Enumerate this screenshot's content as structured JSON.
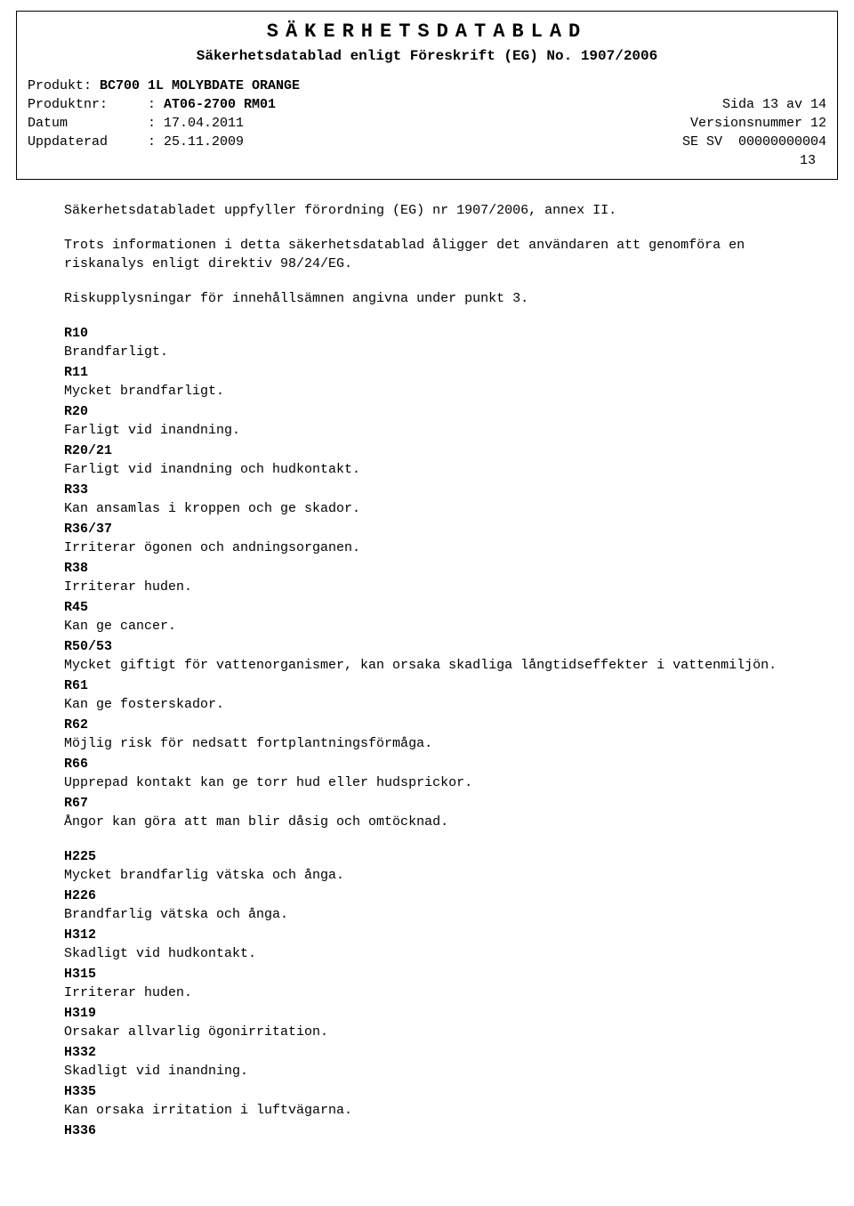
{
  "header": {
    "title": "SÄKERHETSDATABLAD",
    "subtitle": "Säkerhetsdatablad enligt Föreskrift (EG) No. 1907/2006",
    "product_label": "Produkt: ",
    "product_value": "BC700 1L MOLYBDATE ORANGE",
    "productnr_label": "Produktnr:     : ",
    "productnr_value": "AT06-2700 RM01",
    "page_text": "Sida 13 av 14",
    "date_label": "Datum          : ",
    "date_value": "17.04.2011",
    "version_text": "Versionsnummer 12",
    "updated_label": "Uppdaterad     : ",
    "updated_value": "25.11.2009",
    "locale_text": "SE SV  00000000004",
    "inner_pagenum": "13"
  },
  "intro": {
    "p1": "Säkerhetsdatabladet uppfyller förordning (EG) nr 1907/2006, annex II.",
    "p2": "Trots informationen i detta säkerhetsdatablad åligger det användaren att genomföra en riskanalys enligt direktiv 98/24/EG.",
    "p3": "Riskupplysningar för innehållsämnen angivna under punkt 3."
  },
  "r_phrases": [
    {
      "code": "R10",
      "text": "Brandfarligt."
    },
    {
      "code": "R11",
      "text": "Mycket brandfarligt."
    },
    {
      "code": "R20",
      "text": "Farligt vid inandning."
    },
    {
      "code": "R20/21",
      "text": "Farligt vid inandning och hudkontakt."
    },
    {
      "code": "R33",
      "text": "Kan ansamlas i kroppen och ge skador."
    },
    {
      "code": "R36/37",
      "text": "Irriterar ögonen och andningsorganen."
    },
    {
      "code": "R38",
      "text": "Irriterar huden."
    },
    {
      "code": "R45",
      "text": "Kan ge cancer."
    },
    {
      "code": "R50/53",
      "text": "Mycket giftigt för vattenorganismer, kan orsaka skadliga långtidseffekter i vattenmiljön."
    },
    {
      "code": "R61",
      "text": "Kan ge fosterskador."
    },
    {
      "code": "R62",
      "text": "Möjlig risk för nedsatt fortplantningsförmåga."
    },
    {
      "code": "R66",
      "text": "Upprepad kontakt kan ge torr hud eller hudsprickor."
    },
    {
      "code": "R67",
      "text": "Ångor kan göra att man blir dåsig och omtöcknad."
    }
  ],
  "h_phrases": [
    {
      "code": "H225",
      "text": "Mycket brandfarlig vätska och ånga."
    },
    {
      "code": "H226",
      "text": "Brandfarlig vätska och ånga."
    },
    {
      "code": "H312",
      "text": "Skadligt vid hudkontakt."
    },
    {
      "code": "H315",
      "text": "Irriterar huden."
    },
    {
      "code": "H319",
      "text": "Orsakar allvarlig ögonirritation."
    },
    {
      "code": "H332",
      "text": "Skadligt vid inandning."
    },
    {
      "code": "H335",
      "text": "Kan orsaka irritation i luftvägarna."
    },
    {
      "code": "H336",
      "text": ""
    }
  ]
}
